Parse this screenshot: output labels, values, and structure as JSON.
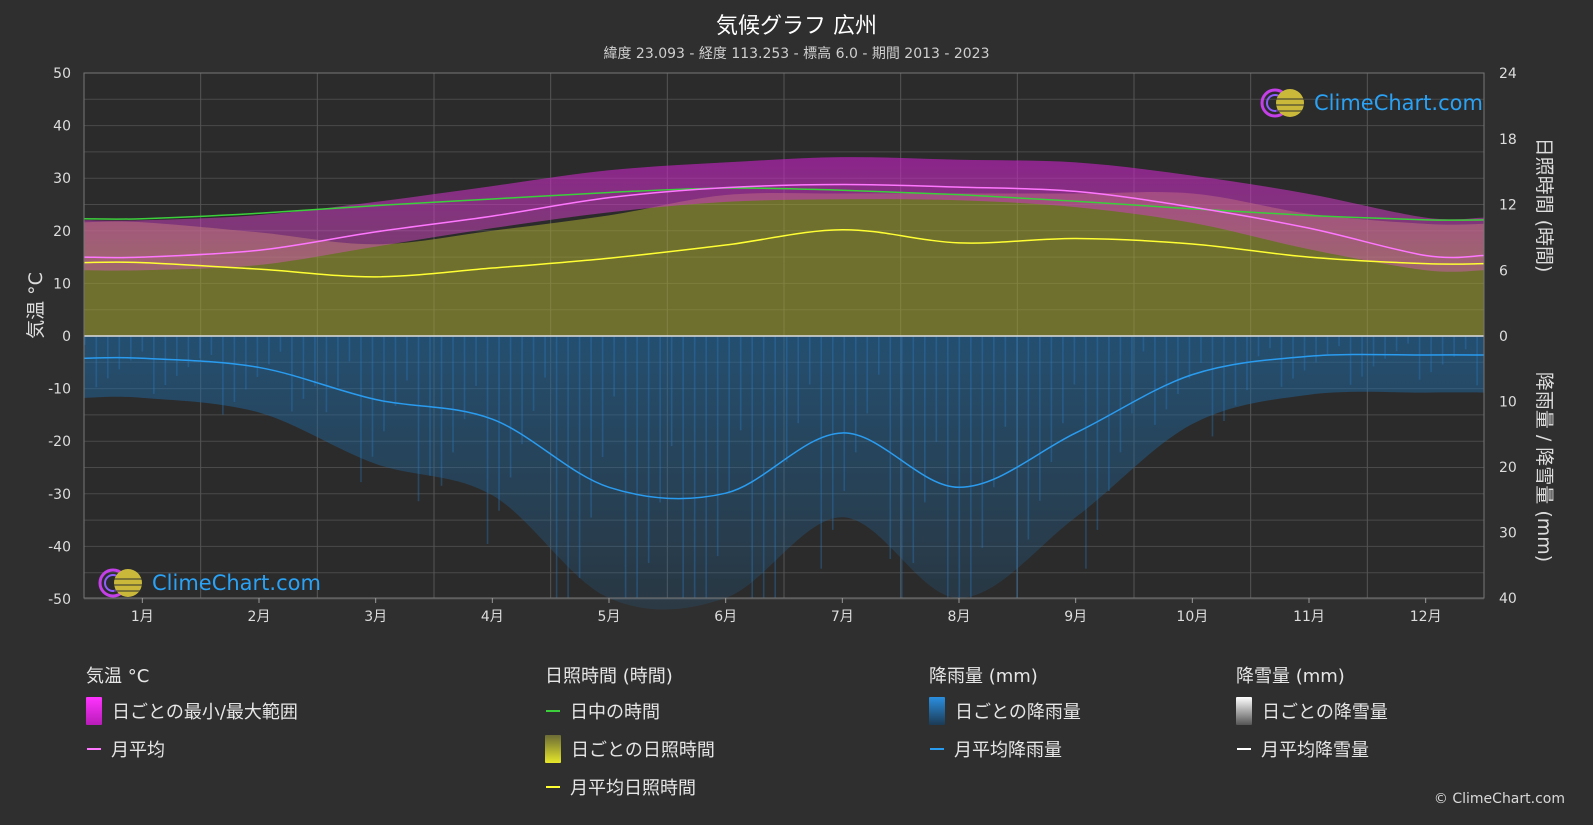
{
  "header": {
    "title": "気候グラフ 広州",
    "subtitle": "緯度 23.093 - 経度 113.253 - 標高 6.0 - 期間 2013 - 2023"
  },
  "chart_data": {
    "type": "area",
    "months": [
      "1月",
      "2月",
      "3月",
      "4月",
      "5月",
      "6月",
      "7月",
      "8月",
      "9月",
      "10月",
      "11月",
      "12月"
    ],
    "axes": {
      "left": {
        "label": "気温 °C",
        "range": [
          -50,
          50
        ],
        "ticks": [
          "50",
          "40",
          "30",
          "20",
          "10",
          "0",
          "-10",
          "-20",
          "-30",
          "-40",
          "-50"
        ]
      },
      "right_top": {
        "label": "日照時間 (時間)",
        "range": [
          0,
          24
        ],
        "ticks": [
          "24",
          "18",
          "12",
          "6",
          "0"
        ]
      },
      "right_bottom": {
        "label": "降雨量 / 降雪量 (mm)",
        "range": [
          0,
          40
        ],
        "ticks": [
          "0",
          "10",
          "20",
          "30",
          "40"
        ]
      }
    },
    "grid": true,
    "series": [
      {
        "name": "月平均",
        "unit": "°C",
        "values": [
          15.0,
          16.3,
          19.8,
          22.8,
          26.3,
          28.2,
          28.8,
          28.3,
          27.5,
          24.5,
          20.5,
          15.3
        ]
      },
      {
        "name": "日中の時間",
        "unit": "時間",
        "values": [
          10.7,
          11.2,
          11.9,
          12.5,
          13.1,
          13.5,
          13.3,
          12.9,
          12.3,
          11.6,
          11.0,
          10.6
        ]
      },
      {
        "name": "月平均日照時間",
        "unit": "時間",
        "values": [
          6.7,
          6.1,
          5.4,
          6.2,
          7.1,
          8.3,
          9.7,
          8.5,
          8.9,
          8.4,
          7.2,
          6.6
        ]
      },
      {
        "name": "月平均降雨量",
        "unit": "mm",
        "values": [
          3.4,
          4.8,
          9.7,
          12.7,
          23.1,
          24.0,
          14.8,
          23.1,
          14.8,
          5.9,
          3.1,
          2.9
        ]
      },
      {
        "name": "月平均降雪量",
        "unit": "mm",
        "values": [
          0,
          0,
          0,
          0,
          0,
          0,
          0,
          0,
          0,
          0,
          0,
          0
        ]
      }
    ],
    "daily_temp_range": {
      "name": "日ごとの最小/最大範囲",
      "min": [
        12.5,
        13.5,
        17,
        20.5,
        23.5,
        25.5,
        26,
        25.8,
        24.5,
        21.5,
        16.5,
        12.5
      ],
      "max": [
        22,
        23,
        25.5,
        28.5,
        31.5,
        33,
        34,
        33.5,
        33,
        30.5,
        27,
        22.5
      ]
    },
    "colors": {
      "temp_range": "#d62ed6",
      "temp_avg": "#ff77ff",
      "daylight": "#3ccf3c",
      "sunshine": "#a8a832",
      "sunshine_avg": "#ffff33",
      "rain": "#1e6aa8",
      "rain_avg": "#2a9cf0",
      "snow_avg": "#ffffff",
      "zero_line": "#dddddd"
    }
  },
  "legend": {
    "temperature": {
      "title": "気温 °C",
      "range_label": "日ごとの最小/最大範囲",
      "avg_label": "月平均"
    },
    "sunshine": {
      "title": "日照時間 (時間)",
      "daylight_label": "日中の時間",
      "daily_label": "日ごとの日照時間",
      "avg_label": "月平均日照時間"
    },
    "rain": {
      "title": "降雨量 (mm)",
      "daily_label": "日ごとの降雨量",
      "avg_label": "月平均降雨量"
    },
    "snow": {
      "title": "降雪量 (mm)",
      "daily_label": "日ごとの降雪量",
      "avg_label": "月平均降雪量"
    }
  },
  "branding": {
    "logo_text": "ClimeChart.com",
    "copyright": "© ClimeChart.com"
  }
}
